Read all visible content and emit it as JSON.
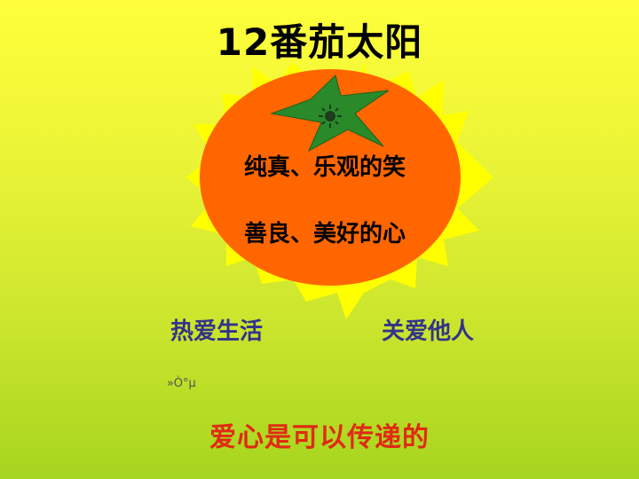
{
  "slide": {
    "title": "12番茄太阳",
    "sun_lines": [
      "纯真、乐观的笑",
      "善良、美好的心"
    ],
    "left_text": "热爱生活",
    "right_text": "关爱他人",
    "garbled_text": "»Ò°µ",
    "bottom_text": "爱心是可以传递的"
  },
  "colors": {
    "background_top": "#ffff3a",
    "background_bottom": "#a6d51f",
    "sun_rays": "#ffff00",
    "tomato": "#ff6600",
    "leaf": "#2a8a2a",
    "side_text": "#33338c",
    "bottom_text": "#e02a12"
  },
  "icons": [
    "sun-icon",
    "leaf-icon",
    "tomato-sun-icon"
  ]
}
